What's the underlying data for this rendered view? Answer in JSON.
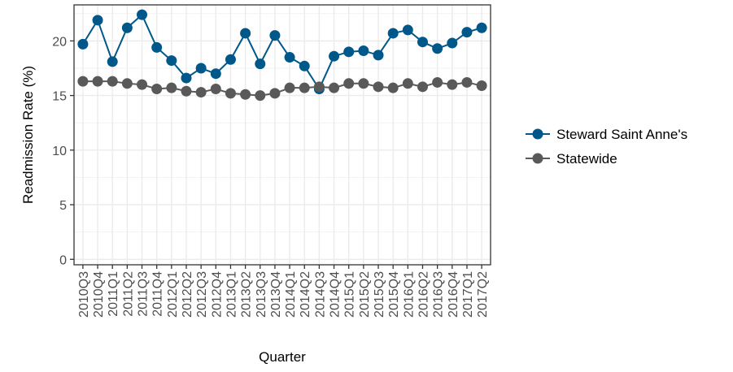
{
  "chart_data": {
    "type": "line",
    "title": "",
    "xlabel": "Quarter",
    "ylabel": "Readmission Rate (%)",
    "ylim": [
      -0.5,
      23.3
    ],
    "y_ticks": [
      0,
      5,
      10,
      15,
      20
    ],
    "grid": true,
    "legend_position": "right",
    "categories": [
      "2010Q3",
      "2010Q4",
      "2011Q1",
      "2011Q2",
      "2011Q3",
      "2011Q4",
      "2012Q1",
      "2012Q2",
      "2012Q3",
      "2012Q4",
      "2013Q1",
      "2013Q2",
      "2013Q3",
      "2013Q4",
      "2014Q1",
      "2014Q2",
      "2014Q3",
      "2014Q4",
      "2015Q1",
      "2015Q2",
      "2015Q3",
      "2015Q4",
      "2016Q1",
      "2016Q2",
      "2016Q3",
      "2016Q4",
      "2017Q1",
      "2017Q2"
    ],
    "series": [
      {
        "name": "Steward Saint Anne's",
        "color": "#00578a",
        "values": [
          19.7,
          21.9,
          18.1,
          21.2,
          22.4,
          19.4,
          18.2,
          16.6,
          17.5,
          17.0,
          18.3,
          20.7,
          17.9,
          20.5,
          18.5,
          17.7,
          15.6,
          18.6,
          19.0,
          19.1,
          18.7,
          20.7,
          21.0,
          19.9,
          19.3,
          19.8,
          20.8,
          21.2
        ]
      },
      {
        "name": "Statewide",
        "color": "#595959",
        "values": [
          16.3,
          16.3,
          16.3,
          16.1,
          16.0,
          15.6,
          15.7,
          15.4,
          15.3,
          15.6,
          15.2,
          15.1,
          15.0,
          15.2,
          15.7,
          15.7,
          15.8,
          15.7,
          16.1,
          16.1,
          15.8,
          15.7,
          16.1,
          15.8,
          16.2,
          16.0,
          16.2,
          15.9
        ]
      }
    ]
  }
}
